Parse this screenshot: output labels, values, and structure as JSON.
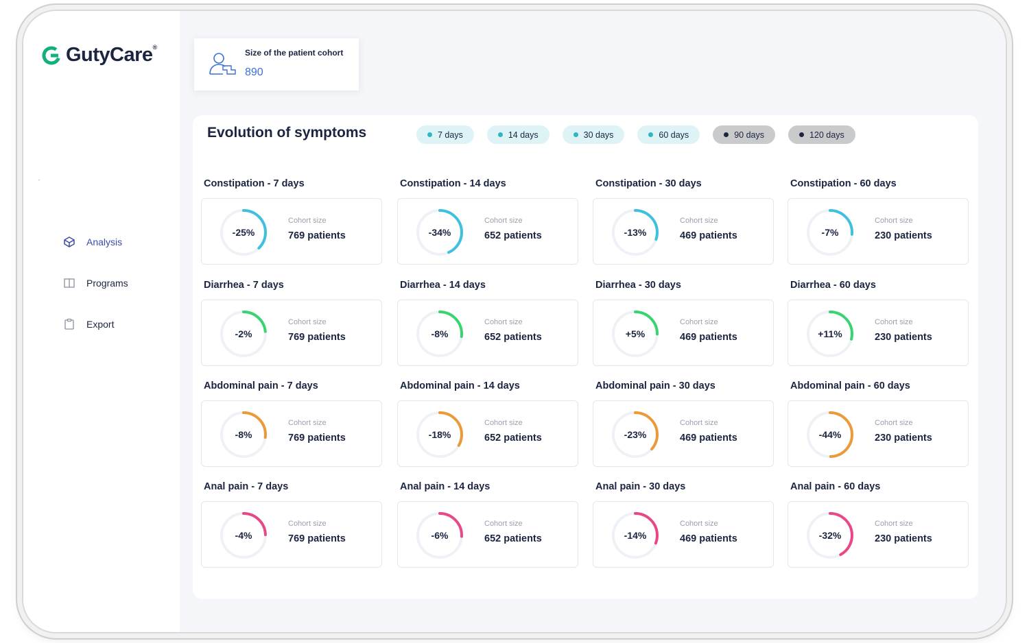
{
  "brand": {
    "name": "GutyCare",
    "mark": "®",
    "accent": "#13b07a"
  },
  "sidebar": {
    "items": [
      {
        "label": "Analysis",
        "icon": "cube-icon",
        "active": true
      },
      {
        "label": "Programs",
        "icon": "book-icon",
        "active": false
      },
      {
        "label": "Export",
        "icon": "clipboard-icon",
        "active": false
      }
    ]
  },
  "cohort": {
    "label": "Size of the patient cohort",
    "value": "890",
    "icon": "add-user-icon"
  },
  "panel": {
    "title": "Evolution of symptoms",
    "filters": [
      {
        "label": "7 days",
        "active": true
      },
      {
        "label": "14 days",
        "active": true
      },
      {
        "label": "30 days",
        "active": true
      },
      {
        "label": "60 days",
        "active": true
      },
      {
        "label": "90 days",
        "active": false
      },
      {
        "label": "120 days",
        "active": false
      }
    ]
  },
  "colors": {
    "Constipation": "#3ec0de",
    "Diarrhea": "#38d46f",
    "Abdominal pain": "#eb9a3a",
    "Anal pain": "#e84888",
    "track": "#eef2f7"
  },
  "cohort_size_label": "Cohort size",
  "symptoms": [
    {
      "name": "Constipation",
      "cells": [
        {
          "title": "Constipation - 7 days",
          "value": "-25%",
          "cohort": "769 patients"
        },
        {
          "title": "Constipation - 14 days",
          "value": "-34%",
          "cohort": "652 patients"
        },
        {
          "title": "Constipation - 30 days",
          "value": "-13%",
          "cohort": "469 patients"
        },
        {
          "title": "Constipation - 60 days",
          "value": "-7%",
          "cohort": "230 patients"
        }
      ]
    },
    {
      "name": "Diarrhea",
      "cells": [
        {
          "title": "Diarrhea - 7 days",
          "value": "-2%",
          "cohort": "769 patients"
        },
        {
          "title": "Diarrhea - 14 days",
          "value": "-8%",
          "cohort": "652 patients"
        },
        {
          "title": "Diarrhea - 30 days",
          "value": "+5%",
          "cohort": "469 patients"
        },
        {
          "title": "Diarrhea - 60 days",
          "value": "+11%",
          "cohort": "230 patients"
        }
      ]
    },
    {
      "name": "Abdominal pain",
      "cells": [
        {
          "title": "Abdominal pain - 7 days",
          "value": "-8%",
          "cohort": "769 patients"
        },
        {
          "title": "Abdominal pain - 14 days",
          "value": "-18%",
          "cohort": "652 patients"
        },
        {
          "title": "Abdominal pain - 30 days",
          "value": "-23%",
          "cohort": "469 patients"
        },
        {
          "title": "Abdominal pain - 60 days",
          "value": "-44%",
          "cohort": "230 patients"
        }
      ]
    },
    {
      "name": "Anal pain",
      "cells": [
        {
          "title": "Anal pain - 7 days",
          "value": "-4%",
          "cohort": "769 patients"
        },
        {
          "title": "Anal pain - 14 days",
          "value": "-6%",
          "cohort": "652 patients"
        },
        {
          "title": "Anal pain - 30 days",
          "value": "-14%",
          "cohort": "469 patients"
        },
        {
          "title": "Anal pain - 60 days",
          "value": "-32%",
          "cohort": "230 patients"
        }
      ]
    }
  ]
}
